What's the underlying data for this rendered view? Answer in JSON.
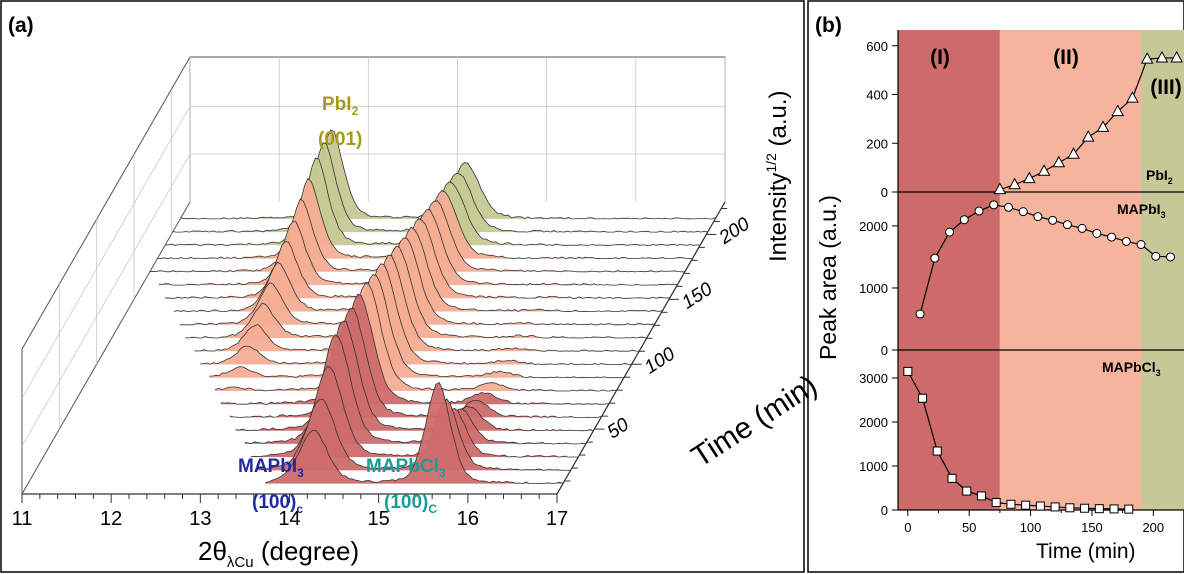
{
  "panel_a": {
    "label": "(a)",
    "x_axis_label_main": "2θ",
    "x_axis_label_sub": "λCu",
    "x_axis_label_rest": " (degree)",
    "z_axis_label_main": "Intensity",
    "z_axis_label_sup": "1/2",
    "z_axis_label_rest": " (a.u.)",
    "time_axis_label": "Time (min)",
    "annotations": {
      "pbi2_name": "PbI",
      "pbi2_sub": "2",
      "pbi2_hkl": "(001)",
      "mapbi3_name": "MAPbI",
      "mapbi3_sub": "3",
      "mapbi3_hkl": "(100)",
      "mapbi3_hkl_sub": "c",
      "mapbcl3_name": "MAPbCl",
      "mapbcl3_sub": "3",
      "mapbcl3_hkl": "(100)",
      "mapbcl3_hkl_sub": "C"
    },
    "colors": {
      "region_I": "#cd6b6b",
      "region_II": "#f4ad94",
      "region_III": "#c6c992"
    }
  },
  "panel_b": {
    "label": "(b)",
    "y_label": "Peak area (a.u.)",
    "x_label": "Time (min)",
    "region_labels": [
      "(I)",
      "(II)",
      "(III)"
    ],
    "colors": {
      "region_I": "#cd6b6b",
      "region_II": "#f6b49c",
      "region_III": "#c7c898"
    }
  },
  "chart_data": [
    {
      "type": "line",
      "panel": "a",
      "description_note": "3D waterfall of XRD patterns",
      "x_ticks": [
        11,
        12,
        13,
        14,
        15,
        16,
        17
      ],
      "time_ticks": [
        50,
        100,
        150,
        200
      ],
      "xlim": [
        11,
        17
      ],
      "time_range": [
        0,
        225
      ],
      "n_patterns": 21,
      "peaks": [
        {
          "name": "MAPbI3 (100)c",
          "position": 14.2
        },
        {
          "name": "MAPbCl3 (100)c",
          "position": 15.6
        },
        {
          "name": "PbI2 (001)",
          "position": 12.7
        }
      ]
    },
    {
      "type": "line",
      "panel": "b-top",
      "series": [
        {
          "name": "PbI2",
          "marker": "triangle",
          "x": [
            75,
            87,
            99,
            111,
            123,
            135,
            147,
            159,
            171,
            183,
            195,
            207,
            219
          ],
          "y": [
            10,
            30,
            55,
            85,
            120,
            155,
            225,
            265,
            330,
            385,
            545,
            550,
            550
          ]
        }
      ],
      "ylim": [
        0,
        640
      ],
      "y_ticks": [
        0,
        200,
        400,
        600
      ]
    },
    {
      "type": "line",
      "panel": "b-middle",
      "series": [
        {
          "name": "MAPbI3",
          "marker": "circle",
          "x": [
            10,
            22,
            34,
            46,
            58,
            70,
            82,
            94,
            106,
            118,
            130,
            142,
            154,
            166,
            178,
            190,
            202,
            214
          ],
          "y": [
            580,
            1480,
            1900,
            2100,
            2240,
            2340,
            2300,
            2230,
            2150,
            2090,
            2020,
            1960,
            1880,
            1820,
            1750,
            1700,
            1510,
            1500
          ]
        }
      ],
      "ylim": [
        0,
        2450
      ],
      "y_ticks": [
        0,
        1000,
        2000
      ]
    },
    {
      "type": "line",
      "panel": "b-bottom",
      "series": [
        {
          "name": "MAPbCl3",
          "marker": "square",
          "x": [
            0,
            12,
            24,
            36,
            48,
            60,
            72,
            84,
            96,
            108,
            120,
            132,
            144,
            156,
            168,
            180
          ],
          "y": [
            3150,
            2540,
            1340,
            720,
            430,
            320,
            170,
            130,
            110,
            90,
            70,
            50,
            40,
            30,
            25,
            20
          ]
        }
      ],
      "ylim": [
        0,
        3500
      ],
      "y_ticks": [
        0,
        1000,
        2000,
        3000
      ],
      "x_ticks": [
        0,
        50,
        100,
        150,
        200
      ],
      "xlim": [
        -8,
        225
      ]
    }
  ]
}
